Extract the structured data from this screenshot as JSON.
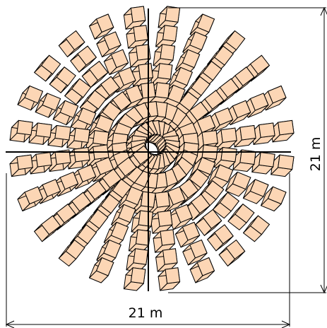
{
  "dimensions": {
    "width_label": "21 m",
    "height_label": "21 m"
  },
  "structure": {
    "arms": 24,
    "blocks_per_arm": 7
  },
  "colors": {
    "block_fill": "#fcd6b5",
    "outline": "#000000",
    "background": "#ffffff"
  }
}
